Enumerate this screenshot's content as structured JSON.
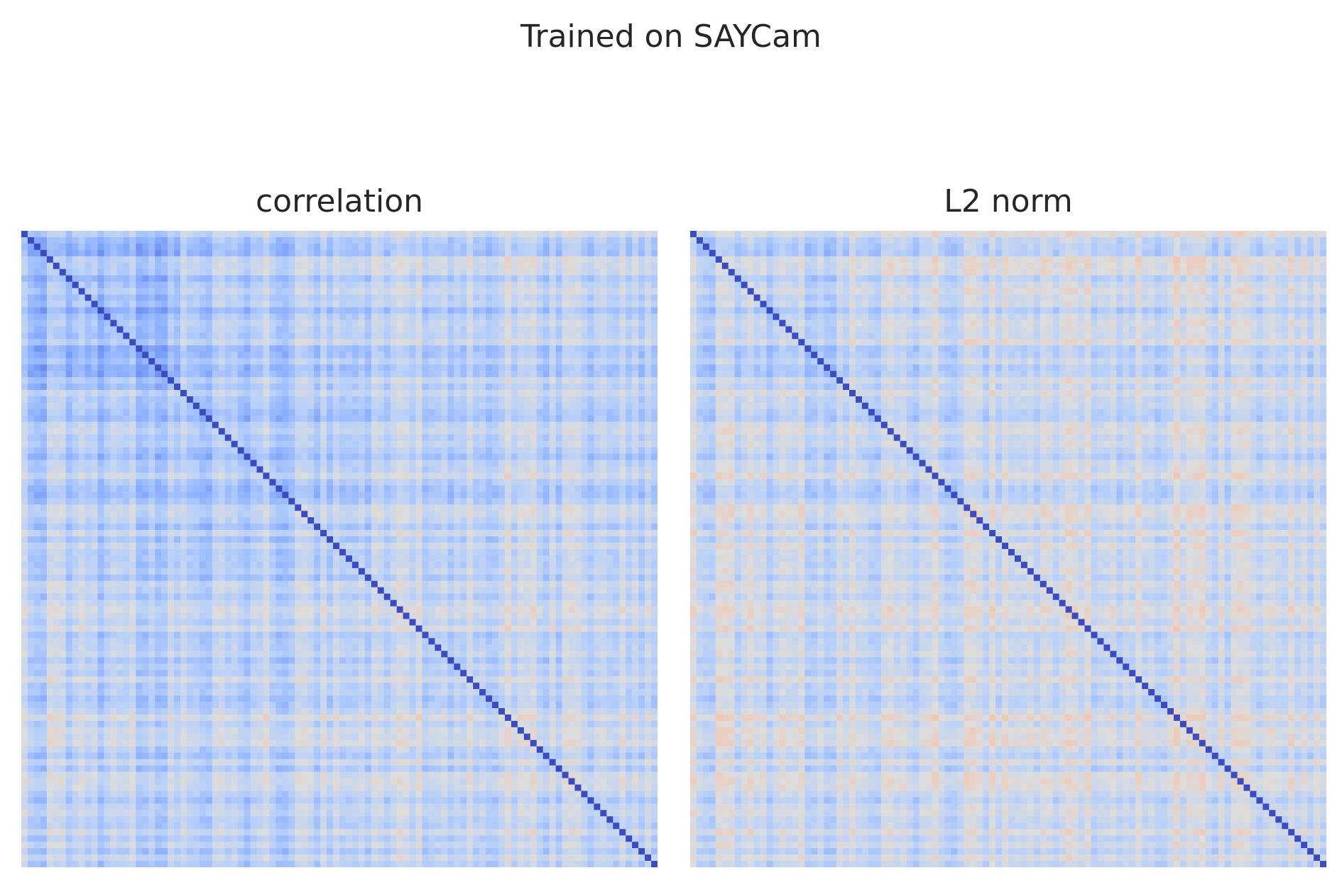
{
  "suptitle": "Trained on SAYCam",
  "chart_data": [
    {
      "type": "heatmap",
      "title": "correlation",
      "xlabel": "",
      "ylabel": "",
      "n": 100,
      "colormap": "coolwarm",
      "vmin": -1,
      "vmax": 1,
      "diagonal_value": 1.0,
      "colorbar": false,
      "ticks": false,
      "block_structure": [
        {
          "rows": [
            0,
            25
          ],
          "cols": [
            0,
            25
          ],
          "mean": 0.4
        },
        {
          "rows": [
            25,
            55
          ],
          "cols": [
            25,
            55
          ],
          "mean": 0.3
        },
        {
          "rows": [
            0,
            55
          ],
          "cols": [
            0,
            55
          ],
          "mean": 0.28
        },
        {
          "rows": [
            55,
            100
          ],
          "cols": [
            55,
            100
          ],
          "mean": 0.14
        },
        {
          "rows": [
            0,
            100
          ],
          "cols": [
            0,
            100
          ],
          "mean": 0.2
        }
      ]
    },
    {
      "type": "heatmap",
      "title": "L2 norm",
      "xlabel": "",
      "ylabel": "",
      "n": 100,
      "colormap": "coolwarm",
      "vmin": -1,
      "vmax": 1,
      "diagonal_value": 1.0,
      "colorbar": false,
      "ticks": false,
      "block_structure": [
        {
          "rows": [
            0,
            25
          ],
          "cols": [
            0,
            25
          ],
          "mean": 0.22
        },
        {
          "rows": [
            25,
            55
          ],
          "cols": [
            25,
            55
          ],
          "mean": 0.16
        },
        {
          "rows": [
            0,
            55
          ],
          "cols": [
            0,
            55
          ],
          "mean": 0.15
        },
        {
          "rows": [
            55,
            100
          ],
          "cols": [
            55,
            100
          ],
          "mean": 0.08
        },
        {
          "rows": [
            0,
            100
          ],
          "cols": [
            0,
            100
          ],
          "mean": 0.11
        }
      ]
    }
  ]
}
